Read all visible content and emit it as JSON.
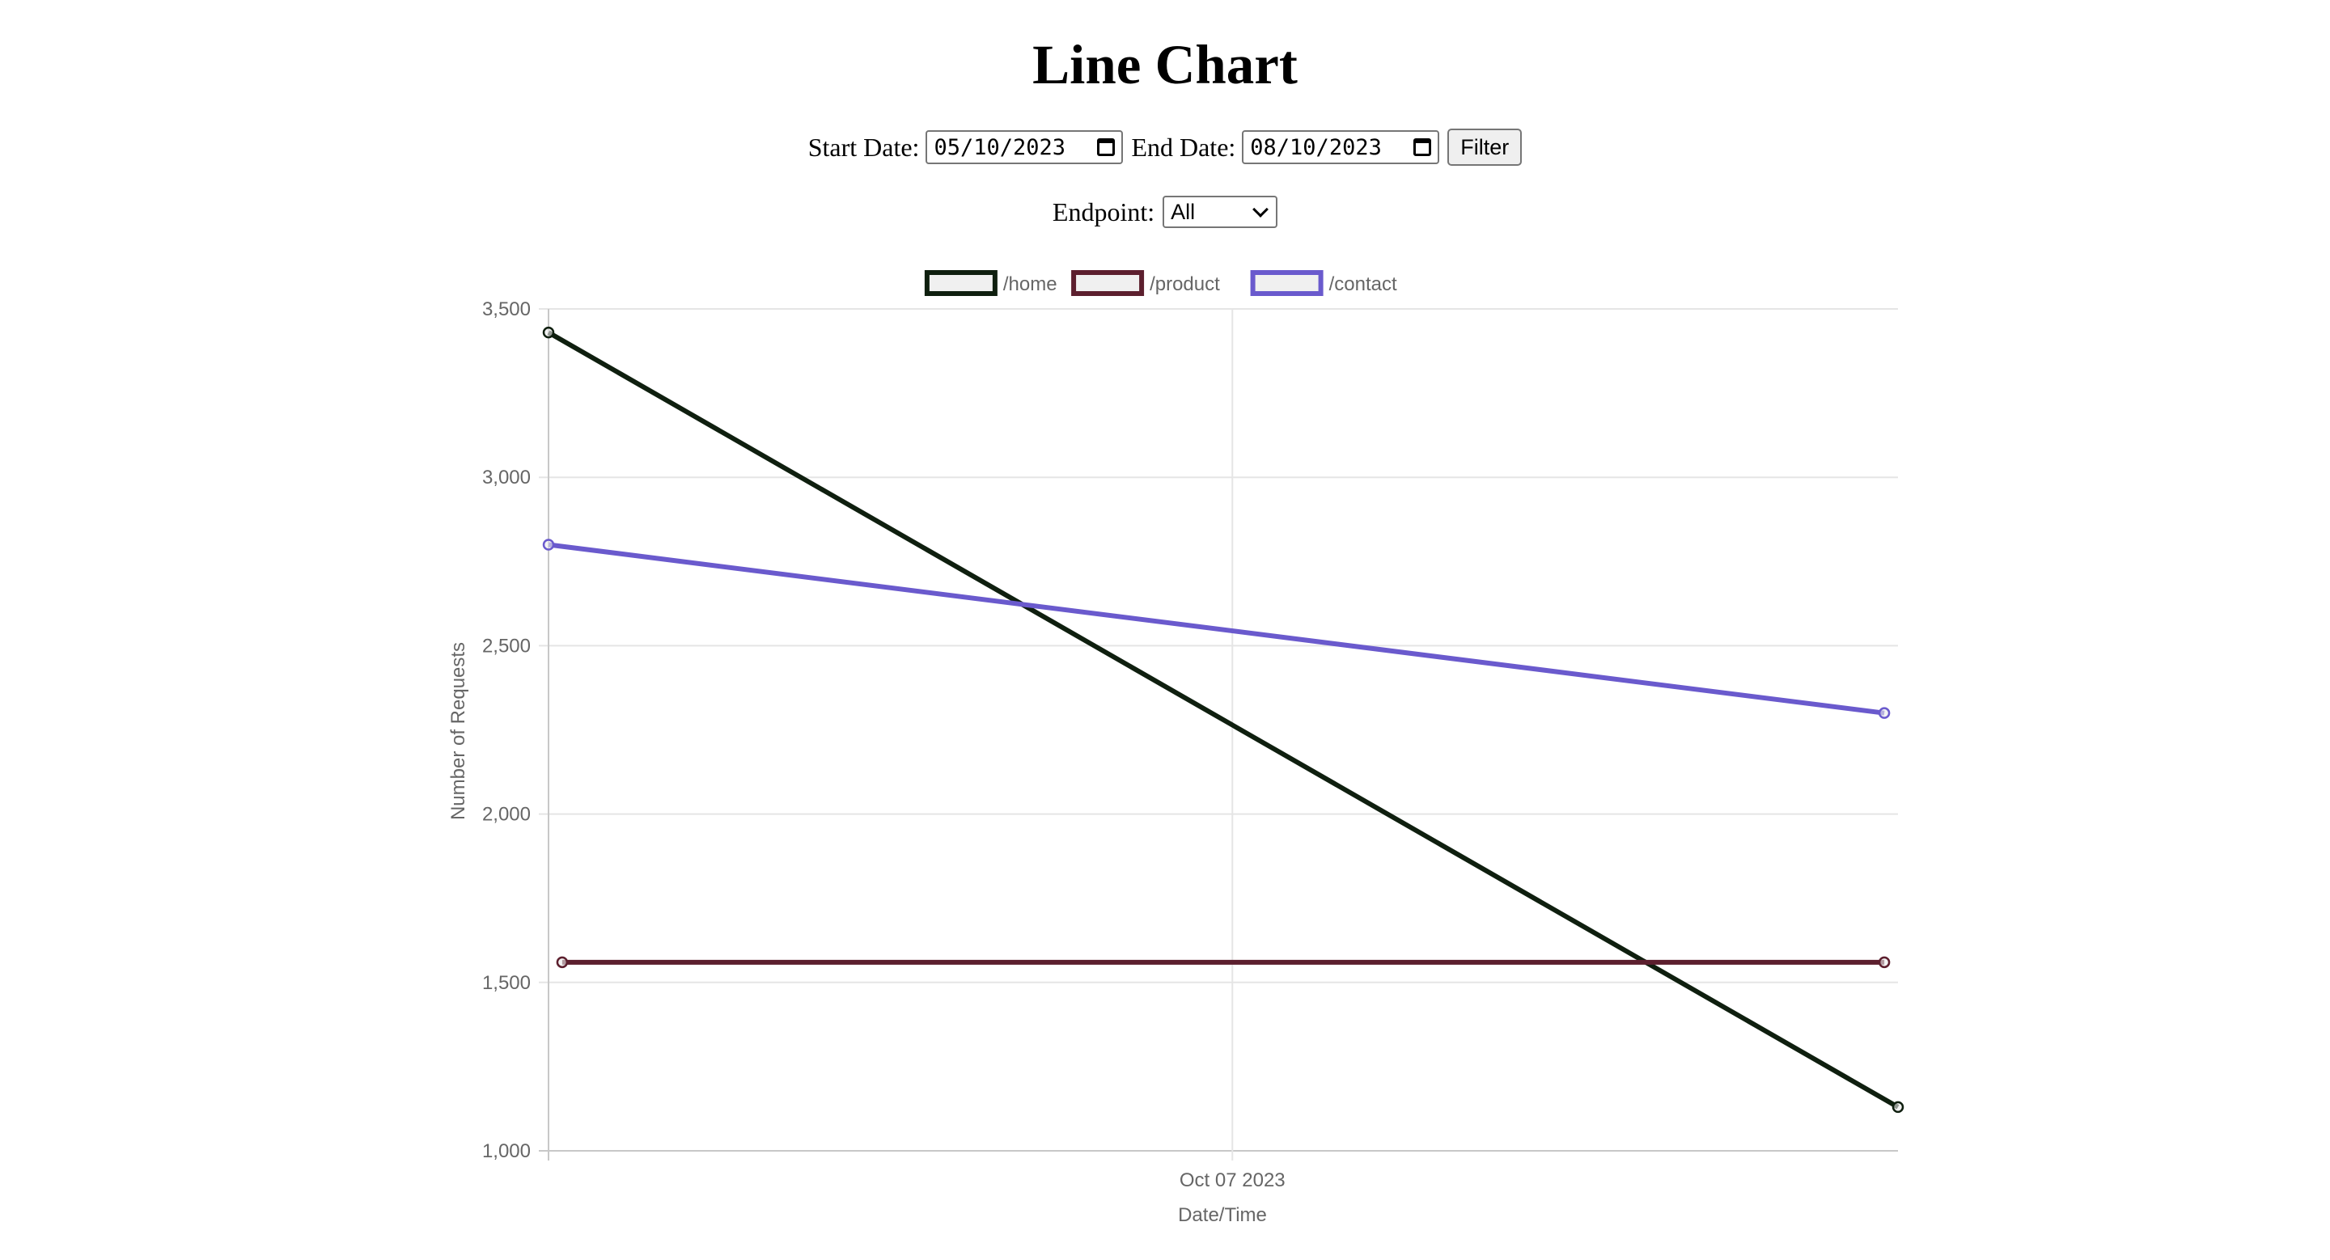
{
  "page": {
    "title": "Line Chart",
    "start_label": "Start Date:",
    "start_value": "05/10/2023",
    "end_label": "End Date:",
    "end_value": "08/10/2023",
    "filter_label": "Filter",
    "endpoint_label": "Endpoint:",
    "endpoint_value": "All"
  },
  "chart_data": {
    "type": "line",
    "title": "",
    "xlabel": "Date/Time",
    "ylabel": "Number of Requests",
    "ylim": [
      1000,
      3500
    ],
    "y_ticks": [
      1000,
      1500,
      2000,
      2500,
      3000,
      3500
    ],
    "y_tick_labels": [
      "1,000",
      "1,500",
      "2,000",
      "2,500",
      "3,000",
      "3,500"
    ],
    "x_ticks": [
      {
        "x": "2023-10-07",
        "label": "Oct 07 2023"
      }
    ],
    "xlim": [
      "2023-05-10",
      "2024-03-01"
    ],
    "grid": true,
    "legend": "top-center",
    "series": [
      {
        "name": "/home",
        "color": "#0f1f0f",
        "points": [
          {
            "x": "2023-05-10",
            "y": 3430
          },
          {
            "x": "2024-03-01",
            "y": 1130
          }
        ]
      },
      {
        "name": "/product",
        "color": "#5c1f2e",
        "points": [
          {
            "x": "2023-05-13",
            "y": 1560
          },
          {
            "x": "2024-02-27",
            "y": 1560
          }
        ]
      },
      {
        "name": "/contact",
        "color": "#6a5acd",
        "points": [
          {
            "x": "2023-05-10",
            "y": 2800
          },
          {
            "x": "2024-02-27",
            "y": 2300
          }
        ]
      }
    ]
  }
}
